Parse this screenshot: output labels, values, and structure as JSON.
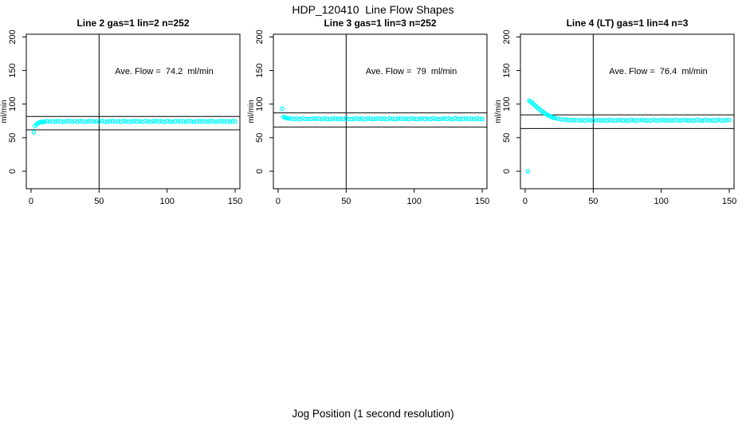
{
  "header": {
    "title": "HDP_120410  Line Flow Shapes"
  },
  "footer": {
    "xlabel": "Jog Position (1 second resolution)"
  },
  "chart_data": [
    {
      "type": "scatter",
      "title": "Line 2 gas=1 lin=2 n=252",
      "annotation": "Ave. Flow =  74.2  ml/min",
      "ave_flow_ml_min": 74.2,
      "n": 252,
      "ylabel": "ml/min",
      "xticks": [
        0,
        50,
        100,
        150
      ],
      "yticks": [
        0,
        50,
        100,
        150,
        200
      ],
      "xlim": [
        -3.5,
        153.5
      ],
      "ylim": [
        -26,
        204
      ],
      "vlines": [
        50
      ],
      "hlines": [
        81.6,
        61.8
      ],
      "marker_color": "#00FFFF",
      "annotation_pos": [
        99,
        148
      ],
      "points": [
        [
          2,
          58
        ],
        [
          3,
          67.5
        ],
        [
          4,
          70
        ],
        [
          5,
          71.5
        ],
        [
          6,
          72.5
        ],
        [
          7,
          73
        ],
        [
          8,
          73.4
        ],
        [
          9,
          73.6
        ],
        [
          10,
          73.8
        ],
        [
          12,
          74.8
        ],
        [
          14,
          73.9
        ],
        [
          16,
          74.5
        ],
        [
          18,
          73.6
        ],
        [
          20,
          74.9
        ],
        [
          22,
          74.1
        ],
        [
          24,
          73.7
        ],
        [
          26,
          74.4
        ],
        [
          28,
          74.8
        ],
        [
          30,
          73.9
        ],
        [
          32,
          74.5
        ],
        [
          34,
          73.6
        ],
        [
          36,
          74.9
        ],
        [
          38,
          74.1
        ],
        [
          40,
          73.7
        ],
        [
          42,
          74.4
        ],
        [
          44,
          74.8
        ],
        [
          46,
          73.9
        ],
        [
          48,
          74.5
        ],
        [
          50,
          73.6
        ],
        [
          52,
          74.9
        ],
        [
          54,
          74.1
        ],
        [
          56,
          73.7
        ],
        [
          58,
          74.4
        ],
        [
          60,
          74.8
        ],
        [
          62,
          73.9
        ],
        [
          64,
          74.5
        ],
        [
          66,
          73.6
        ],
        [
          68,
          74.9
        ],
        [
          70,
          74.1
        ],
        [
          72,
          73.7
        ],
        [
          74,
          74.4
        ],
        [
          76,
          74.8
        ],
        [
          78,
          73.9
        ],
        [
          80,
          74.5
        ],
        [
          82,
          73.6
        ],
        [
          84,
          74.9
        ],
        [
          86,
          74.1
        ],
        [
          88,
          73.7
        ],
        [
          90,
          74.4
        ],
        [
          92,
          74.8
        ],
        [
          94,
          73.9
        ],
        [
          96,
          74.5
        ],
        [
          98,
          73.6
        ],
        [
          100,
          74.9
        ],
        [
          102,
          74.1
        ],
        [
          104,
          73.7
        ],
        [
          106,
          74.4
        ],
        [
          108,
          74.8
        ],
        [
          110,
          73.9
        ],
        [
          112,
          74.5
        ],
        [
          114,
          73.6
        ],
        [
          116,
          74.9
        ],
        [
          118,
          74.1
        ],
        [
          120,
          73.7
        ],
        [
          122,
          74.4
        ],
        [
          124,
          74.8
        ],
        [
          126,
          73.9
        ],
        [
          128,
          74.5
        ],
        [
          130,
          73.6
        ],
        [
          132,
          74.9
        ],
        [
          134,
          74.1
        ],
        [
          136,
          73.7
        ],
        [
          138,
          74.4
        ],
        [
          140,
          74.8
        ],
        [
          142,
          73.9
        ],
        [
          144,
          74.5
        ],
        [
          146,
          73.6
        ],
        [
          148,
          74.9
        ],
        [
          150,
          74.1
        ]
      ]
    },
    {
      "type": "scatter",
      "title": "Line 3 gas=1 lin=3 n=252",
      "annotation": "Ave. Flow =  79  ml/min",
      "ave_flow_ml_min": 79,
      "n": 252,
      "ylabel": "ml/min",
      "xticks": [
        0,
        50,
        100,
        150
      ],
      "yticks": [
        0,
        50,
        100,
        150,
        200
      ],
      "xlim": [
        -3.5,
        153.5
      ],
      "ylim": [
        -26,
        204
      ],
      "vlines": [
        50
      ],
      "hlines": [
        86.9,
        65.8
      ],
      "marker_color": "#00FFFF",
      "annotation_pos": [
        99,
        148
      ],
      "points": [
        [
          3,
          93
        ],
        [
          4,
          81
        ],
        [
          5,
          80
        ],
        [
          6,
          79.3
        ],
        [
          7,
          78.8
        ],
        [
          8,
          78.5
        ],
        [
          10,
          78.6
        ],
        [
          12,
          77.8
        ],
        [
          14,
          78.3
        ],
        [
          16,
          77.5
        ],
        [
          18,
          78.8
        ],
        [
          20,
          78
        ],
        [
          22,
          77.6
        ],
        [
          24,
          78.2
        ],
        [
          26,
          78.6
        ],
        [
          28,
          77.8
        ],
        [
          30,
          78.3
        ],
        [
          32,
          77.5
        ],
        [
          34,
          78.8
        ],
        [
          36,
          78
        ],
        [
          38,
          77.6
        ],
        [
          40,
          78.2
        ],
        [
          42,
          78.6
        ],
        [
          44,
          77.8
        ],
        [
          46,
          78.3
        ],
        [
          48,
          77.5
        ],
        [
          50,
          78.8
        ],
        [
          52,
          78
        ],
        [
          54,
          77.6
        ],
        [
          56,
          78.2
        ],
        [
          58,
          78.6
        ],
        [
          60,
          77.8
        ],
        [
          62,
          78.3
        ],
        [
          64,
          77.5
        ],
        [
          66,
          78.8
        ],
        [
          68,
          78
        ],
        [
          70,
          77.6
        ],
        [
          72,
          78.2
        ],
        [
          74,
          78.6
        ],
        [
          76,
          77.8
        ],
        [
          78,
          78.3
        ],
        [
          80,
          77.5
        ],
        [
          82,
          78.8
        ],
        [
          84,
          78
        ],
        [
          86,
          77.6
        ],
        [
          88,
          78.2
        ],
        [
          90,
          78.6
        ],
        [
          92,
          77.8
        ],
        [
          94,
          78.3
        ],
        [
          96,
          77.5
        ],
        [
          98,
          78.8
        ],
        [
          100,
          78
        ],
        [
          102,
          77.6
        ],
        [
          104,
          78.2
        ],
        [
          106,
          78.6
        ],
        [
          108,
          77.8
        ],
        [
          110,
          78.3
        ],
        [
          112,
          77.5
        ],
        [
          114,
          78.8
        ],
        [
          116,
          78
        ],
        [
          118,
          77.6
        ],
        [
          120,
          78.2
        ],
        [
          122,
          78.6
        ],
        [
          124,
          77.8
        ],
        [
          126,
          78.3
        ],
        [
          128,
          77.5
        ],
        [
          130,
          78.8
        ],
        [
          132,
          78
        ],
        [
          134,
          77.6
        ],
        [
          136,
          78.2
        ],
        [
          138,
          78.6
        ],
        [
          140,
          77.8
        ],
        [
          142,
          78.3
        ],
        [
          144,
          77.5
        ],
        [
          146,
          78.8
        ],
        [
          148,
          78
        ],
        [
          150,
          77.6
        ]
      ]
    },
    {
      "type": "scatter",
      "title": "Line 4 (LT) gas=1 lin=4 n=3",
      "annotation": "Ave. Flow =  76.4  ml/min",
      "ave_flow_ml_min": 76.4,
      "n": 3,
      "ylabel": "ml/min",
      "xticks": [
        0,
        50,
        100,
        150
      ],
      "yticks": [
        0,
        50,
        100,
        150,
        200
      ],
      "xlim": [
        -3.5,
        153.5
      ],
      "ylim": [
        -26,
        204
      ],
      "vlines": [
        50
      ],
      "hlines": [
        84.0,
        63.7
      ],
      "marker_color": "#00FFFF",
      "annotation_pos": [
        99,
        148
      ],
      "points": [
        [
          2,
          0
        ],
        [
          3,
          105
        ],
        [
          4,
          103.5
        ],
        [
          5,
          102
        ],
        [
          6,
          100.2
        ],
        [
          7,
          98.4
        ],
        [
          8,
          96.6
        ],
        [
          9,
          94.8
        ],
        [
          10,
          93
        ],
        [
          11,
          91.3
        ],
        [
          12,
          89.7
        ],
        [
          13,
          88.2
        ],
        [
          14,
          86.8
        ],
        [
          15,
          85.5
        ],
        [
          16,
          84.3
        ],
        [
          17,
          83.2
        ],
        [
          18,
          82.2
        ],
        [
          19,
          81.3
        ],
        [
          20,
          80.5
        ],
        [
          21,
          79.8
        ],
        [
          22,
          79.2
        ],
        [
          24,
          78.2
        ],
        [
          26,
          77.5
        ],
        [
          28,
          77
        ],
        [
          30,
          76.6
        ],
        [
          32,
          76.3
        ],
        [
          34,
          76.1
        ],
        [
          36,
          75.9
        ],
        [
          38,
          76.3
        ],
        [
          40,
          75.6
        ],
        [
          42,
          76
        ],
        [
          44,
          75.3
        ],
        [
          46,
          76.5
        ],
        [
          48,
          75.8
        ],
        [
          50,
          75.4
        ],
        [
          52,
          76.1
        ],
        [
          54,
          76.3
        ],
        [
          56,
          75.6
        ],
        [
          58,
          76
        ],
        [
          60,
          75.3
        ],
        [
          62,
          76.5
        ],
        [
          64,
          75.8
        ],
        [
          66,
          75.4
        ],
        [
          68,
          76.1
        ],
        [
          70,
          76.3
        ],
        [
          72,
          75.6
        ],
        [
          74,
          76
        ],
        [
          76,
          75.3
        ],
        [
          78,
          76.5
        ],
        [
          80,
          75.8
        ],
        [
          82,
          75.4
        ],
        [
          84,
          76.1
        ],
        [
          86,
          76.3
        ],
        [
          88,
          75.6
        ],
        [
          90,
          76
        ],
        [
          92,
          75.3
        ],
        [
          94,
          76.5
        ],
        [
          96,
          75.8
        ],
        [
          98,
          75.4
        ],
        [
          100,
          76.1
        ],
        [
          102,
          76.3
        ],
        [
          104,
          75.6
        ],
        [
          106,
          76
        ],
        [
          108,
          75.3
        ],
        [
          110,
          76.5
        ],
        [
          112,
          75.8
        ],
        [
          114,
          75.4
        ],
        [
          116,
          76.1
        ],
        [
          118,
          76.3
        ],
        [
          120,
          75.6
        ],
        [
          122,
          76
        ],
        [
          124,
          75.3
        ],
        [
          126,
          76.5
        ],
        [
          128,
          75.8
        ],
        [
          130,
          75.4
        ],
        [
          132,
          76.1
        ],
        [
          134,
          76.3
        ],
        [
          136,
          75.6
        ],
        [
          138,
          76
        ],
        [
          140,
          75.3
        ],
        [
          142,
          76.5
        ],
        [
          144,
          75.8
        ],
        [
          146,
          75.4
        ],
        [
          148,
          76.1
        ],
        [
          150,
          76.3
        ]
      ]
    }
  ]
}
